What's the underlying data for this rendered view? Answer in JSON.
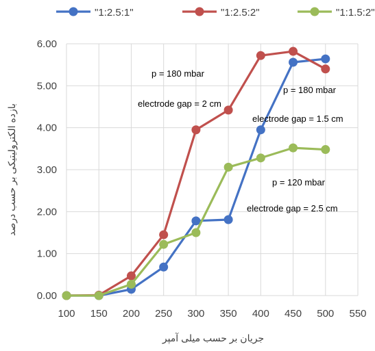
{
  "chart_data": {
    "type": "line",
    "title": "",
    "xlabel": "جریان بر حسب میلی آمپر",
    "ylabel": "بازده الکترولیتیکی بر حسب درصد",
    "x": [
      100,
      150,
      200,
      250,
      300,
      350,
      400,
      450,
      500
    ],
    "xlim": [
      100,
      550
    ],
    "x_ticks": [
      "100",
      "150",
      "200",
      "250",
      "300",
      "350",
      "400",
      "450",
      "500",
      "550"
    ],
    "ylim": [
      0,
      6
    ],
    "y_ticks": [
      "0.00",
      "1.00",
      "2.00",
      "3.00",
      "4.00",
      "5.00",
      "6.00"
    ],
    "grid": "vertical and horizontal major gridlines",
    "legend_position": "top",
    "series": [
      {
        "name": "\"1:2.5:1\"",
        "color": "#4472C4",
        "values": [
          0.0,
          0.0,
          0.15,
          0.68,
          1.78,
          1.81,
          3.95,
          5.56,
          5.64
        ]
      },
      {
        "name": "\"1:2.5:2\"",
        "color": "#C0504D",
        "values": [
          0.0,
          0.01,
          0.47,
          1.45,
          3.95,
          4.42,
          5.72,
          5.82,
          5.4
        ]
      },
      {
        "name": "\"1:1.5:2\"",
        "color": "#9BBB59",
        "values": [
          0.0,
          0.0,
          0.27,
          1.22,
          1.5,
          3.06,
          3.28,
          3.52,
          3.48
        ]
      }
    ],
    "annotations": [
      "p = 180 mbar",
      "electrode gap = 2 cm",
      "p = 180 mbar",
      "electrode gap = 1.5 cm",
      "p = 120 mbar",
      "electrode gap = 2.5 cm"
    ]
  }
}
